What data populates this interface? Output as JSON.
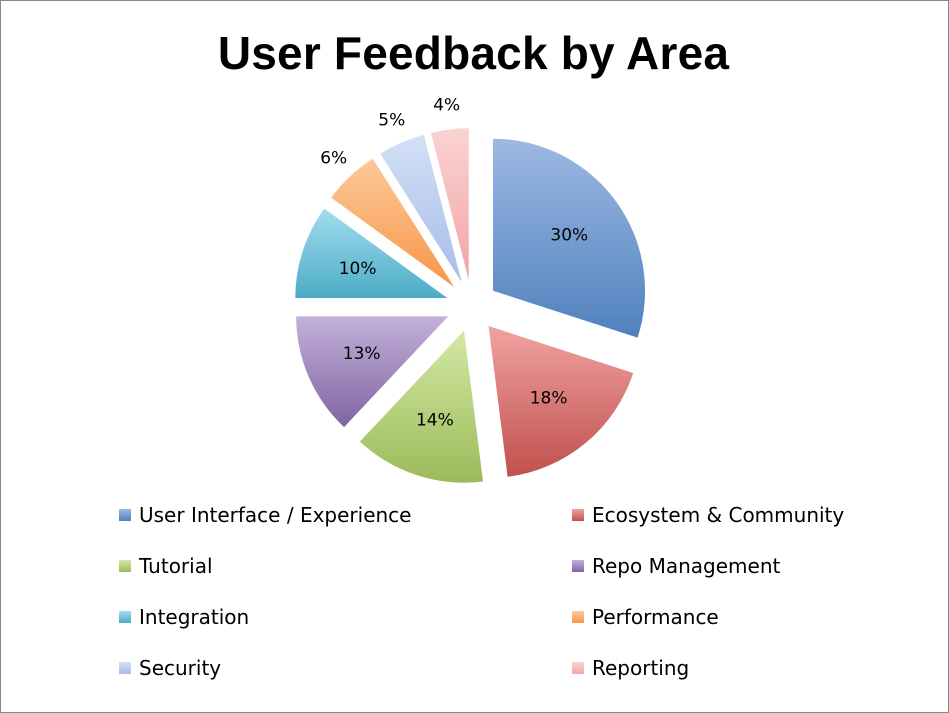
{
  "chart_data": {
    "type": "pie",
    "title": "User Feedback by Area",
    "exploded": true,
    "slices": [
      {
        "label": "User Interface / Experience",
        "value": 30,
        "display": "30%",
        "color": "#4f81bd",
        "light": "#9db9e3"
      },
      {
        "label": "Ecosystem & Community",
        "value": 18,
        "display": "18%",
        "color": "#c0504d",
        "light": "#f0a3a1"
      },
      {
        "label": "Tutorial",
        "value": 14,
        "display": "14%",
        "color": "#9bbb59",
        "light": "#d3e8a6"
      },
      {
        "label": "Repo Management",
        "value": 13,
        "display": "13%",
        "color": "#8064a2",
        "light": "#c3b1da"
      },
      {
        "label": "Integration",
        "value": 10,
        "display": "10%",
        "color": "#4bacc6",
        "light": "#a3dcee"
      },
      {
        "label": "Performance",
        "value": 6,
        "display": "6%",
        "color": "#f79646",
        "light": "#fcc99a"
      },
      {
        "label": "Security",
        "value": 5,
        "display": "5%",
        "color": "#a6bde8",
        "light": "#d3e0f6"
      },
      {
        "label": "Reporting",
        "value": 4,
        "display": "4%",
        "color": "#f2a5a5",
        "light": "#fad2d2"
      }
    ],
    "legend_placement": "bottom"
  }
}
